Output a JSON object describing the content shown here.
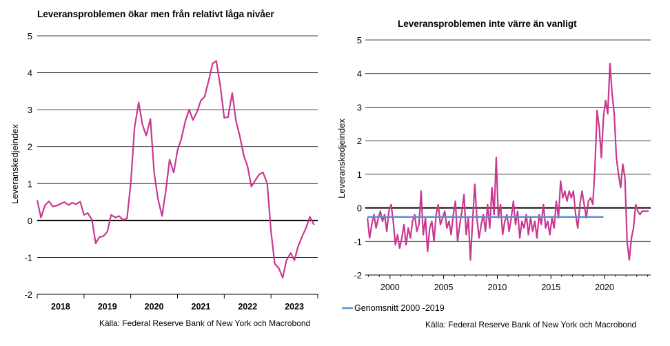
{
  "chart_data": [
    {
      "type": "line",
      "title": "Leveransproblemen ökar men från relativt låga nivåer",
      "ylabel": "Leveranskedjeindex",
      "xlabel": "",
      "ylim": [
        -2,
        5
      ],
      "yticks": [
        "5",
        "4",
        "3",
        "2",
        "1",
        "0",
        "-1",
        "-2"
      ],
      "xlim": [
        2018,
        2024
      ],
      "xticks": [
        "2018",
        "2019",
        "2020",
        "2021",
        "2022",
        "2023"
      ],
      "grid": true,
      "source": "Källa: Federal Reserve Bank of New York och Macrobond",
      "colors": {
        "line": "#c8388f",
        "zero": "#000000",
        "grid": "#000000"
      },
      "series": [
        {
          "x": [
            2018.0,
            2018.08,
            2018.17,
            2018.25,
            2018.33,
            2018.42,
            2018.5,
            2018.58,
            2018.67,
            2018.75,
            2018.83,
            2018.92,
            2019.0,
            2019.08,
            2019.17,
            2019.25,
            2019.33,
            2019.42,
            2019.5,
            2019.58,
            2019.67,
            2019.75,
            2019.83,
            2019.92,
            2020.0,
            2020.08,
            2020.17,
            2020.25,
            2020.33,
            2020.42,
            2020.5,
            2020.58,
            2020.67,
            2020.75,
            2020.83,
            2020.92,
            2021.0,
            2021.08,
            2021.17,
            2021.25,
            2021.33,
            2021.42,
            2021.5,
            2021.58,
            2021.67,
            2021.75,
            2021.83,
            2021.92,
            2022.0,
            2022.08,
            2022.17,
            2022.25,
            2022.33,
            2022.42,
            2022.5,
            2022.58,
            2022.67,
            2022.75,
            2022.83,
            2022.92,
            2023.0,
            2023.08,
            2023.17,
            2023.25,
            2023.33,
            2023.42,
            2023.5,
            2023.58,
            2023.67,
            2023.75,
            2023.83,
            2023.92
          ],
          "values": [
            0.55,
            0.08,
            0.42,
            0.52,
            0.38,
            0.4,
            0.45,
            0.5,
            0.42,
            0.48,
            0.44,
            0.51,
            0.15,
            0.2,
            0.02,
            -0.62,
            -0.45,
            -0.42,
            -0.3,
            0.15,
            0.08,
            0.12,
            0.02,
            0.05,
            1.0,
            2.5,
            3.2,
            2.6,
            2.3,
            2.75,
            1.3,
            0.6,
            0.12,
            0.8,
            1.65,
            1.3,
            1.9,
            2.2,
            2.7,
            3.0,
            2.72,
            2.95,
            3.25,
            3.35,
            3.8,
            4.25,
            4.32,
            3.6,
            2.78,
            2.8,
            3.45,
            2.7,
            2.3,
            1.75,
            1.45,
            0.92,
            1.1,
            1.25,
            1.3,
            1.0,
            -0.3,
            -1.17,
            -1.3,
            -1.55,
            -1.08,
            -0.88,
            -1.08,
            -0.7,
            -0.42,
            -0.2,
            0.1,
            -0.12
          ]
        }
      ]
    },
    {
      "type": "line",
      "title": "Leveransproblemen inte värre än vanligt",
      "ylabel": "Leveranskedjeindex",
      "xlabel": "",
      "ylim": [
        -2,
        5
      ],
      "yticks": [
        "5",
        "4",
        "3",
        "2",
        "1",
        "0",
        "-1",
        "-2"
      ],
      "xlim": [
        1997.7,
        2024.3
      ],
      "xticks": [
        "2000",
        "2005",
        "2010",
        "2015",
        "2020"
      ],
      "grid": true,
      "legend": {
        "position": "bottom-left",
        "entries": [
          "Genomsnitt 2000 -2019"
        ]
      },
      "source": "Källa: Federal Reserve Bank of New York och Macrobond",
      "colors": {
        "line": "#c8388f",
        "average": "#5b8fd6",
        "zero": "#000000",
        "grid": "#000000"
      },
      "series": [
        {
          "x": [
            1997.9,
            1998.1,
            1998.3,
            1998.5,
            1998.7,
            1998.9,
            1999.1,
            1999.3,
            1999.5,
            1999.7,
            1999.9,
            2000.1,
            2000.3,
            2000.5,
            2000.7,
            2000.9,
            2001.1,
            2001.3,
            2001.5,
            2001.7,
            2001.9,
            2002.1,
            2002.3,
            2002.5,
            2002.7,
            2002.9,
            2003.1,
            2003.3,
            2003.5,
            2003.7,
            2003.9,
            2004.1,
            2004.3,
            2004.5,
            2004.7,
            2004.9,
            2005.1,
            2005.3,
            2005.5,
            2005.7,
            2005.9,
            2006.1,
            2006.3,
            2006.5,
            2006.7,
            2006.9,
            2007.1,
            2007.3,
            2007.5,
            2007.7,
            2007.9,
            2008.1,
            2008.3,
            2008.5,
            2008.7,
            2008.9,
            2009.1,
            2009.3,
            2009.5,
            2009.7,
            2009.9,
            2010.1,
            2010.3,
            2010.5,
            2010.7,
            2010.9,
            2011.1,
            2011.3,
            2011.5,
            2011.7,
            2011.9,
            2012.1,
            2012.3,
            2012.5,
            2012.7,
            2012.9,
            2013.1,
            2013.3,
            2013.5,
            2013.7,
            2013.9,
            2014.1,
            2014.3,
            2014.5,
            2014.7,
            2014.9,
            2015.1,
            2015.3,
            2015.5,
            2015.7,
            2015.9,
            2016.1,
            2016.3,
            2016.5,
            2016.7,
            2016.9,
            2017.1,
            2017.3,
            2017.5,
            2017.7,
            2017.9,
            2018.1,
            2018.3,
            2018.5,
            2018.7,
            2018.9,
            2019.1,
            2019.3,
            2019.5,
            2019.7,
            2019.9,
            2020.1,
            2020.3,
            2020.5,
            2020.7,
            2020.9,
            2021.1,
            2021.3,
            2021.5,
            2021.7,
            2021.9,
            2022.1,
            2022.3,
            2022.5,
            2022.7,
            2022.9,
            2023.1,
            2023.3,
            2023.5,
            2023.7,
            2023.9,
            2024.1
          ],
          "values": [
            -0.3,
            -0.9,
            -0.5,
            -0.2,
            -0.6,
            -0.3,
            -0.1,
            -0.4,
            -0.2,
            -0.7,
            -0.1,
            0.1,
            -0.4,
            -1.1,
            -0.8,
            -1.2,
            -0.9,
            -0.5,
            -1.1,
            -0.6,
            -0.9,
            -0.4,
            -0.2,
            -0.7,
            -0.5,
            0.5,
            -0.8,
            -0.3,
            -1.3,
            -0.6,
            -0.4,
            -1.0,
            -0.2,
            0.1,
            -0.5,
            -0.3,
            -0.1,
            -0.6,
            -0.4,
            -0.8,
            -0.2,
            0.2,
            -1.0,
            -0.5,
            -0.1,
            0.4,
            -0.8,
            -0.3,
            -1.55,
            -0.4,
            0.7,
            -0.3,
            -0.9,
            -0.5,
            -0.2,
            -0.7,
            0.1,
            -0.6,
            0.6,
            -0.2,
            1.5,
            -0.3,
            0.1,
            -0.8,
            -0.4,
            -0.2,
            -0.7,
            -0.3,
            0.2,
            -0.5,
            -0.1,
            -0.9,
            -0.4,
            -0.6,
            -0.2,
            -0.8,
            -0.3,
            -0.7,
            -0.4,
            -0.9,
            -0.2,
            -0.5,
            0.1,
            -0.6,
            -0.4,
            -0.8,
            -0.3,
            -0.6,
            0.2,
            -0.3,
            0.8,
            0.3,
            0.5,
            0.2,
            0.5,
            0.3,
            0.5,
            -0.2,
            -0.6,
            0.1,
            0.5,
            0.1,
            -0.3,
            0.2,
            0.3,
            0.1,
            1.2,
            2.9,
            2.4,
            1.5,
            2.7,
            3.2,
            2.8,
            4.3,
            3.4,
            2.8,
            1.5,
            1.0,
            0.6,
            1.3,
            0.9,
            -1.0,
            -1.55,
            -0.9,
            -0.6,
            0.1,
            -0.1,
            -0.2,
            -0.1,
            -0.1,
            -0.1,
            -0.1
          ]
        },
        {
          "name": "Genomsnitt 2000 -2019",
          "x": [
            1997.9,
            2019.9
          ],
          "values": [
            -0.27,
            -0.27
          ]
        }
      ]
    }
  ]
}
